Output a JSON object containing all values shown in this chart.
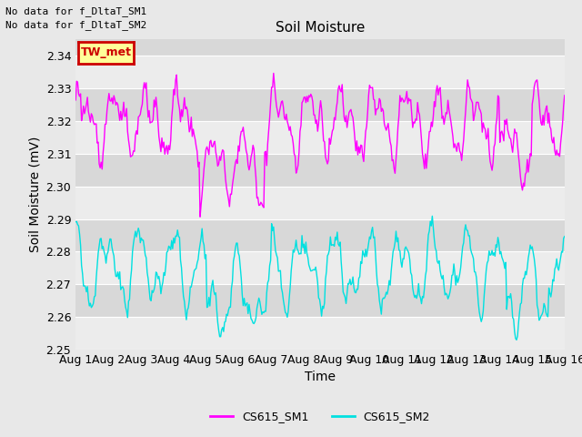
{
  "title": "Soil Moisture",
  "xlabel": "Time",
  "ylabel": "Soil Moisture (mV)",
  "ylim": [
    2.25,
    2.345
  ],
  "yticks": [
    2.25,
    2.26,
    2.27,
    2.28,
    2.29,
    2.3,
    2.31,
    2.32,
    2.33,
    2.34
  ],
  "text_no_data": [
    "No data for f_DltaT_SM1",
    "No data for f_DltaT_SM2"
  ],
  "tw_met_label": "TW_met",
  "tw_met_color": "#cc0000",
  "tw_met_bg": "#ffff99",
  "sm1_color": "#ff00ff",
  "sm2_color": "#00e0e0",
  "legend_sm1": "CS615_SM1",
  "legend_sm2": "CS615_SM2",
  "bg_color": "#e8e8e8",
  "plot_bg": "#e0e0e0",
  "band_light": "#ececec",
  "band_dark": "#d8d8d8",
  "font_size": 9,
  "title_font_size": 11,
  "line_width": 1.0,
  "xtick_labels": [
    "Aug 1",
    "Aug 2",
    "Aug 3",
    "Aug 4",
    "Aug 5",
    "Aug 6",
    "Aug 7",
    "Aug 8",
    "Aug 9",
    "Aug 10",
    "Aug 11",
    "Aug 12",
    "Aug 13",
    "Aug 14",
    "Aug 15",
    "Aug 16"
  ],
  "n_points": 500,
  "sm1_base": 2.32,
  "sm2_base": 2.275
}
